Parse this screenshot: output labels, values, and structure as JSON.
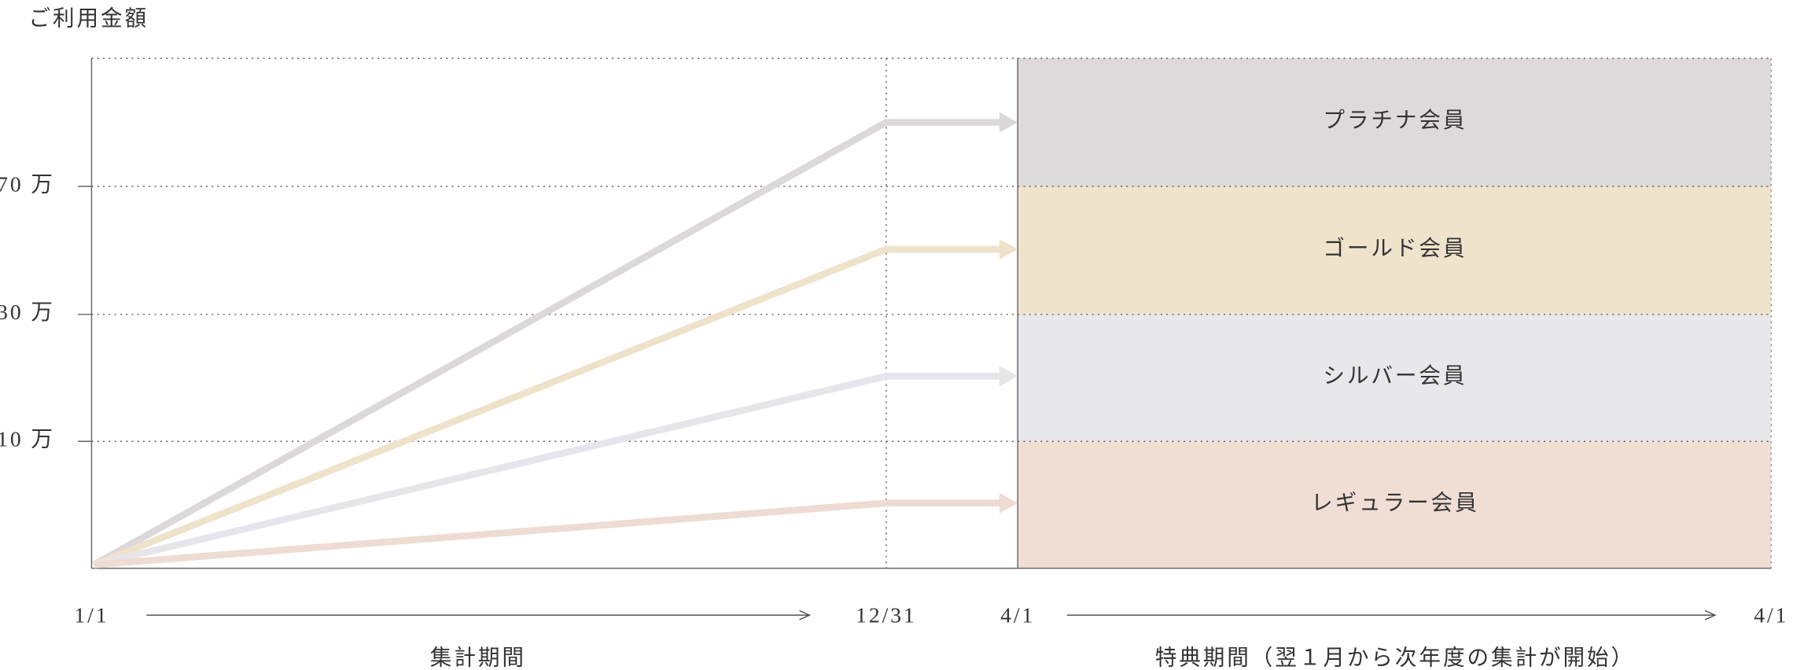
{
  "y_axis_label": "ご利用金額",
  "y_ticks": [
    "70 万",
    "30 万",
    "10 万"
  ],
  "x_labels": [
    "1/1",
    "12/31",
    "4/1",
    "4/1"
  ],
  "tiers": [
    {
      "name": "プラチナ会員",
      "color": "#dedadb",
      "line_color": "#dcd8d9"
    },
    {
      "name": "ゴールド会員",
      "color": "#f0e3cb",
      "line_color": "#efe2cb"
    },
    {
      "name": "シルバー会員",
      "color": "#e8e7eb",
      "line_color": "#e6e5ea"
    },
    {
      "name": "レギュラー会員",
      "color": "#f0ddd4",
      "line_color": "#eedcd3"
    }
  ],
  "periods": [
    "集計期間",
    "特典期間（翌１月から次年度の集計が開始）"
  ]
}
